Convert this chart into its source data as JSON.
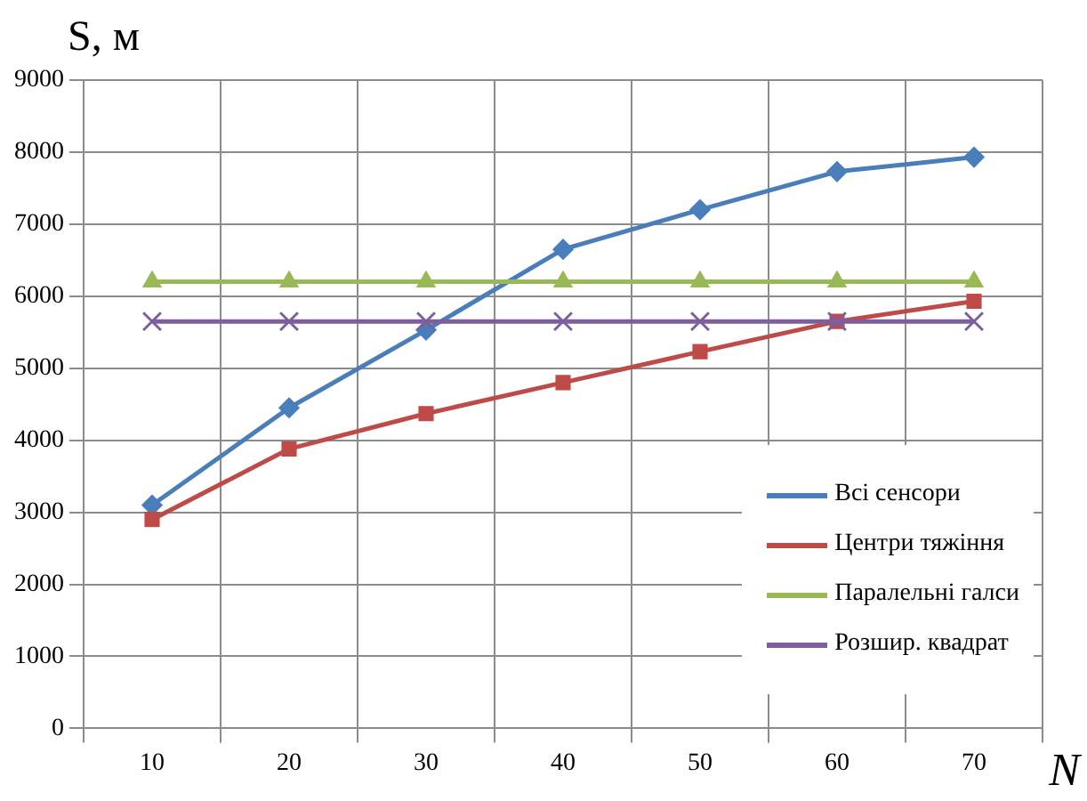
{
  "chart_data": {
    "type": "line",
    "xlabel": "N",
    "ylabel": "S, м",
    "categories": [
      "10",
      "20",
      "30",
      "40",
      "50",
      "60",
      "70"
    ],
    "ylim": [
      0,
      9000
    ],
    "yticks": [
      0,
      1000,
      2000,
      3000,
      4000,
      5000,
      6000,
      7000,
      8000,
      9000
    ],
    "grid": true,
    "legend": "bottom right",
    "line_style": "solid",
    "series": [
      {
        "name": "Всі сенсори",
        "color": "#4a7ebb",
        "marker": "diamond",
        "values": [
          3100,
          4450,
          5530,
          6650,
          7200,
          7730,
          7930
        ]
      },
      {
        "name": "Центри тяжіння",
        "color": "#be4b48",
        "marker": "square",
        "values": [
          2900,
          3880,
          4370,
          4800,
          5230,
          5650,
          5930
        ]
      },
      {
        "name": "Паралельні галси",
        "color": "#98b954",
        "marker": "triangle",
        "values": [
          6200,
          6200,
          6200,
          6200,
          6200,
          6200,
          6200
        ]
      },
      {
        "name": "Розшир. квадрат",
        "color": "#7d5fa0",
        "marker": "cross",
        "values": [
          5650,
          5650,
          5650,
          5650,
          5650,
          5650,
          5650
        ]
      }
    ]
  }
}
